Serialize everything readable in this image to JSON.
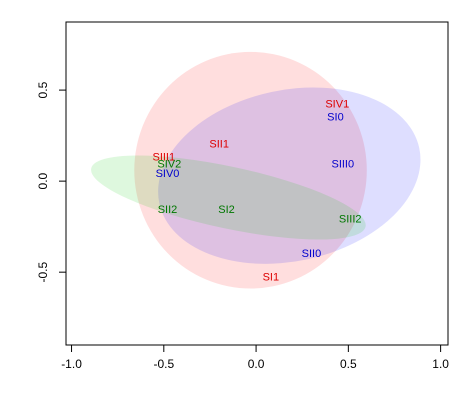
{
  "chart_data": {
    "type": "scatter",
    "xlim": [
      -1.03,
      1.04
    ],
    "ylim": [
      -0.9,
      0.874
    ],
    "xticks": [
      {
        "value": -1,
        "label": "-1.0"
      },
      -0.5,
      {
        "value": 0,
        "label": "0.0"
      },
      0.5,
      {
        "value": 1,
        "label": "1.0"
      }
    ],
    "yticks": [
      -0.5,
      {
        "value": 0,
        "label": "0.0"
      },
      0.5
    ],
    "ellipses": [
      {
        "color": "#ff0000",
        "center": [
          -0.03,
          0.06
        ],
        "radii": [
          0.63,
          0.65
        ],
        "angle": 0
      },
      {
        "color": "#0000ff",
        "center": [
          0.18,
          0.03
        ],
        "radii": [
          0.72,
          0.47
        ],
        "angle": -12
      },
      {
        "color": "#00cc00",
        "center": [
          -0.15,
          -0.09
        ],
        "radii": [
          0.76,
          0.17
        ],
        "angle": 12
      }
    ],
    "points": [
      {
        "label": "SIV1",
        "color": "#dd0000",
        "x": 0.44,
        "y": 0.42
      },
      {
        "label": "SI0",
        "color": "#0000cc",
        "x": 0.43,
        "y": 0.35
      },
      {
        "label": "SII1",
        "color": "#dd0000",
        "x": -0.2,
        "y": 0.2
      },
      {
        "label": "SIII1",
        "color": "#dd0000",
        "x": -0.5,
        "y": 0.13
      },
      {
        "label": "SIV2",
        "color": "#007700",
        "x": -0.47,
        "y": 0.09
      },
      {
        "label": "SIV0",
        "color": "#0000cc",
        "x": -0.48,
        "y": 0.04
      },
      {
        "label": "SIII0",
        "color": "#0000cc",
        "x": 0.47,
        "y": 0.09
      },
      {
        "label": "SII2",
        "color": "#007700",
        "x": -0.48,
        "y": -0.16
      },
      {
        "label": "SI2",
        "color": "#007700",
        "x": -0.16,
        "y": -0.16
      },
      {
        "label": "SIII2",
        "color": "#007700",
        "x": 0.51,
        "y": -0.21
      },
      {
        "label": "SII0",
        "color": "#0000cc",
        "x": 0.3,
        "y": -0.4
      },
      {
        "label": "SI1",
        "color": "#dd0000",
        "x": 0.08,
        "y": -0.53
      }
    ]
  }
}
